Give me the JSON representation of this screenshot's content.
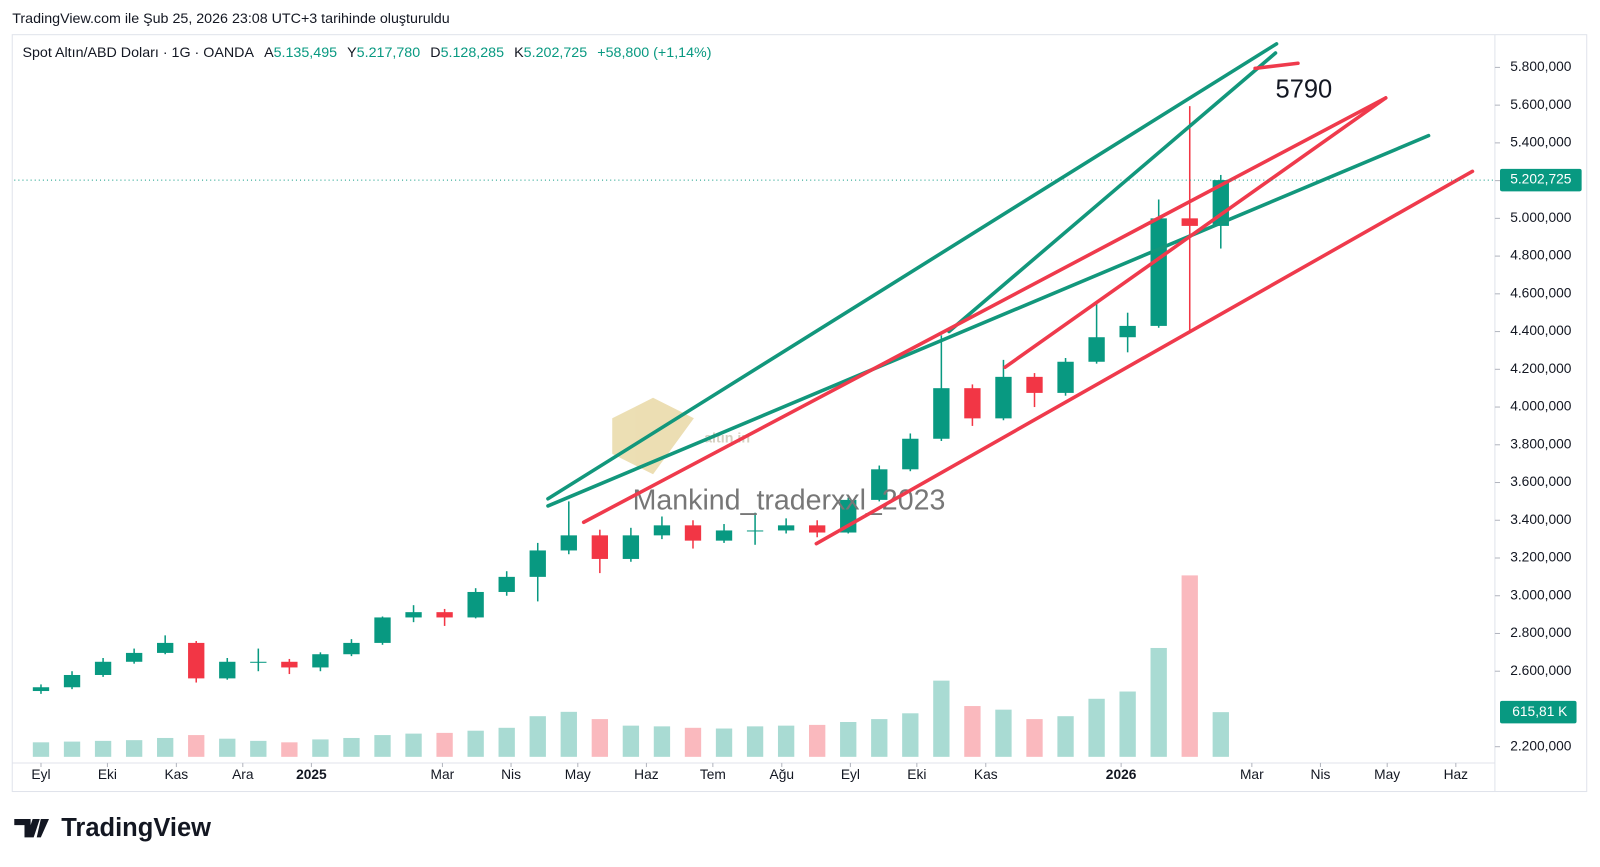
{
  "header": {
    "created": "TradingView.com ile Şub 25, 2026 23:08 UTC+3 tarihinde oluşturuldu",
    "brand": "TradingView"
  },
  "chart_data": {
    "type": "candlestick",
    "title": "Spot Altın/ABD Doları · 1G · OANDA",
    "ohlc_legend": [
      {
        "key": "A",
        "label": "5.135,495"
      },
      {
        "key": "Y",
        "label": "5.217,780"
      },
      {
        "key": "D",
        "label": "5.128,285"
      },
      {
        "key": "K",
        "label": "5.202,725"
      }
    ],
    "change": "+58,800 (+1,14%)",
    "annotations": [
      "5790",
      "altin.in",
      "Mankind_traderxxl_2023"
    ],
    "categories": [
      null,
      null,
      null,
      null,
      null,
      null,
      null,
      null,
      null,
      null,
      null,
      null,
      null,
      null,
      null,
      null,
      null,
      null,
      null,
      null,
      null,
      null,
      null,
      null,
      null,
      null,
      null,
      null,
      null,
      null,
      null,
      null,
      null,
      null,
      null,
      null,
      null,
      null,
      null
    ],
    "open": [
      2495,
      2515,
      2580,
      2650,
      2697,
      2750,
      2562,
      2650,
      2650,
      2620,
      2690,
      2750,
      2885,
      2913,
      2885,
      3020,
      3100,
      3240,
      3320,
      3195,
      3320,
      3373,
      3292,
      3346,
      3346,
      3373,
      3335,
      3508,
      3670,
      3832,
      4100,
      3940,
      4160,
      4075,
      4240,
      4370,
      4430,
      5000,
      4960
    ],
    "high": [
      2530,
      2600,
      2670,
      2720,
      2790,
      2760,
      2670,
      2720,
      2665,
      2700,
      2770,
      2890,
      2950,
      2930,
      3040,
      3130,
      3280,
      3500,
      3350,
      3360,
      3420,
      3400,
      3380,
      3440,
      3410,
      3400,
      3520,
      3690,
      3860,
      4380,
      4120,
      4250,
      4180,
      4260,
      4550,
      4500,
      5100,
      5595,
      5230
    ],
    "low": [
      2480,
      2505,
      2570,
      2640,
      2690,
      2540,
      2555,
      2600,
      2585,
      2600,
      2680,
      2740,
      2860,
      2840,
      2880,
      3000,
      2970,
      3220,
      3120,
      3180,
      3300,
      3250,
      3280,
      3270,
      3330,
      3310,
      3330,
      3500,
      3660,
      3820,
      3900,
      3930,
      4000,
      4060,
      4230,
      4290,
      4420,
      4400,
      4840
    ],
    "close": [
      2515,
      2580,
      2650,
      2697,
      2750,
      2562,
      2650,
      2650,
      2620,
      2690,
      2750,
      2885,
      2913,
      2885,
      3020,
      3100,
      3240,
      3320,
      3195,
      3320,
      3373,
      3292,
      3346,
      3346,
      3373,
      3335,
      3508,
      3670,
      3832,
      4100,
      3940,
      4160,
      4075,
      4240,
      4370,
      4430,
      5000,
      4960,
      5202.725
    ],
    "volume": [
      200,
      210,
      220,
      230,
      260,
      300,
      250,
      220,
      200,
      240,
      260,
      300,
      320,
      330,
      360,
      400,
      560,
      620,
      520,
      430,
      420,
      400,
      390,
      420,
      430,
      440,
      480,
      520,
      600,
      1050,
      700,
      650,
      520,
      560,
      800,
      900,
      1500,
      2500,
      615.81
    ],
    "volume_lim": [
      0,
      2600
    ],
    "up_color": "#089981",
    "down_color": "#f23645",
    "ylim": [
      2130,
      5968
    ],
    "yticks": [
      {
        "value": 2200,
        "label": "2.200,000"
      },
      {
        "value": 2600,
        "label": "2.600,000"
      },
      {
        "value": 2800,
        "label": "2.800,000"
      },
      {
        "value": 3000,
        "label": "3.000,000"
      },
      {
        "value": 3200,
        "label": "3.200,000"
      },
      {
        "value": 3400,
        "label": "3.400,000"
      },
      {
        "value": 3600,
        "label": "3.600,000"
      },
      {
        "value": 3800,
        "label": "3.800,000"
      },
      {
        "value": 4000,
        "label": "4.000,000"
      },
      {
        "value": 4200,
        "label": "4.200,000"
      },
      {
        "value": 4400,
        "label": "4.400,000"
      },
      {
        "value": 4600,
        "label": "4.600,000"
      },
      {
        "value": 4800,
        "label": "4.800,000"
      },
      {
        "value": 5000,
        "label": "5.000,000"
      },
      {
        "value": 5200,
        "label": "5.200,000"
      },
      {
        "value": 5400,
        "label": "5.400,000"
      },
      {
        "value": 5600,
        "label": "5.600,000"
      },
      {
        "value": 5800,
        "label": "5.800,000"
      }
    ],
    "last_price": {
      "value": 5202.725,
      "label": "5.202,725"
    },
    "last_volume": {
      "value": 615.81,
      "label": "615,81 K"
    },
    "xlim": [
      -0.86,
      46.5
    ],
    "xticks": [
      {
        "value": 0,
        "label": "Eyl"
      },
      {
        "value": 2.14,
        "label": "Eki"
      },
      {
        "value": 4.36,
        "label": "Kas"
      },
      {
        "value": 6.5,
        "label": "Ara"
      },
      {
        "value": 8.71,
        "label": "2025"
      },
      {
        "value": 12.93,
        "label": "Mar"
      },
      {
        "value": 15.14,
        "label": "Nis"
      },
      {
        "value": 17.29,
        "label": "May"
      },
      {
        "value": 19.5,
        "label": "Haz"
      },
      {
        "value": 21.64,
        "label": "Tem"
      },
      {
        "value": 23.86,
        "label": "Ağu"
      },
      {
        "value": 26.07,
        "label": "Eyl"
      },
      {
        "value": 28.21,
        "label": "Eki"
      },
      {
        "value": 30.43,
        "label": "Kas"
      },
      {
        "value": 34.79,
        "label": "2026"
      },
      {
        "value": 39,
        "label": "Mar"
      },
      {
        "value": 41.21,
        "label": "Nis"
      },
      {
        "value": 43.36,
        "label": "May"
      },
      {
        "value": 45.57,
        "label": "Haz"
      }
    ],
    "grid": false
  }
}
